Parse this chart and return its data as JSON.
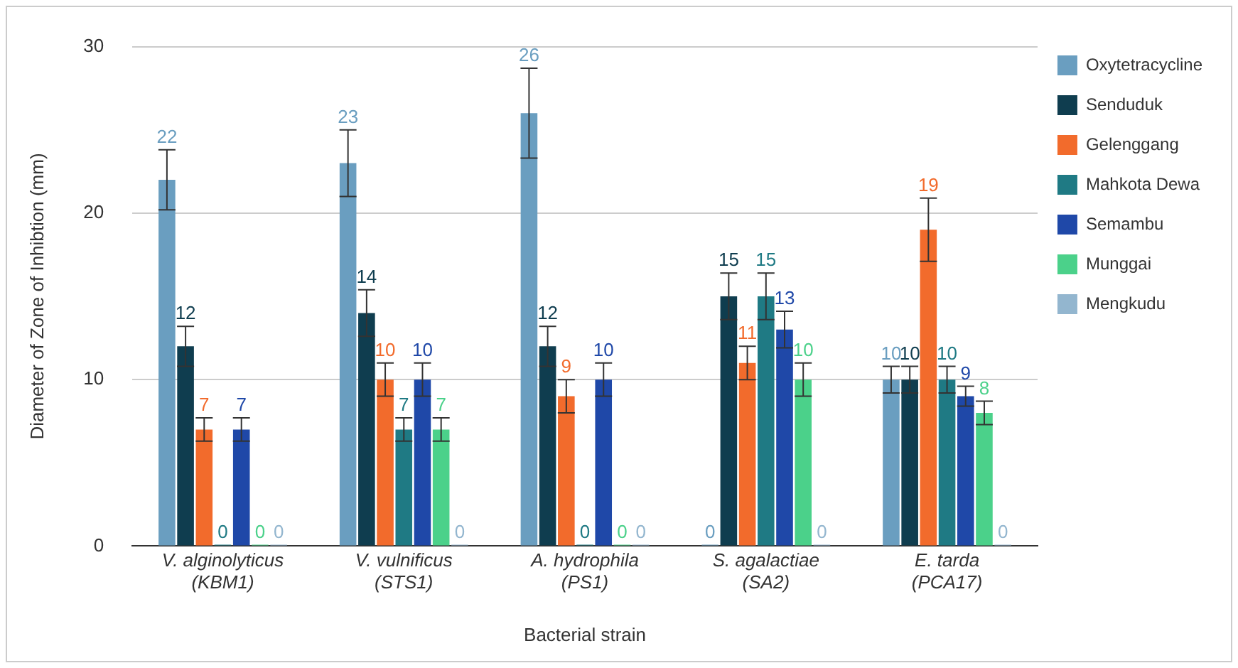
{
  "chart_data": {
    "type": "bar",
    "xlabel": "Bacterial strain",
    "ylabel": "Diameter of Zone of Inhibtion (mm)",
    "categories": [
      "V. alginolyticus (KBM1)",
      "V. vulnificus (STS1)",
      "A. hydrophila (PS1)",
      "S. agalactiae (SA2)",
      "E. tarda (PCA17)"
    ],
    "series": [
      {
        "name": "Oxytetracycline",
        "color": "#6a9ec0",
        "values": [
          22,
          23,
          26,
          0,
          10
        ],
        "errors": [
          1.8,
          2.0,
          2.7,
          null,
          0.8
        ]
      },
      {
        "name": "Senduduk",
        "color": "#0f3d4f",
        "values": [
          12,
          14,
          12,
          15,
          10
        ],
        "errors": [
          1.2,
          1.4,
          1.2,
          1.4,
          0.8
        ]
      },
      {
        "name": "Gelenggang",
        "color": "#f26b2c",
        "values": [
          7,
          10,
          9,
          11,
          19
        ],
        "errors": [
          0.7,
          1.0,
          1.0,
          1.0,
          1.9
        ]
      },
      {
        "name": "Mahkota Dewa",
        "color": "#1f7a84",
        "values": [
          0,
          7,
          0,
          15,
          10
        ],
        "errors": [
          null,
          0.7,
          null,
          1.4,
          0.8
        ]
      },
      {
        "name": "Semambu",
        "color": "#1f48a8",
        "values": [
          7,
          10,
          10,
          13,
          9
        ],
        "errors": [
          0.7,
          1.0,
          1.0,
          1.1,
          0.6
        ]
      },
      {
        "name": "Munggai",
        "color": "#4bd18a",
        "values": [
          0,
          7,
          0,
          10,
          8
        ],
        "errors": [
          null,
          0.7,
          null,
          1.0,
          0.7
        ]
      },
      {
        "name": "Mengkudu",
        "color": "#93b6cf",
        "values": [
          0,
          0,
          0,
          0,
          0
        ],
        "errors": [
          null,
          null,
          null,
          null,
          null
        ]
      }
    ],
    "ylim": [
      0,
      30
    ],
    "yticks": [
      0,
      10,
      20,
      30
    ],
    "grid": "y",
    "legend": "right",
    "data_labels": true
  }
}
